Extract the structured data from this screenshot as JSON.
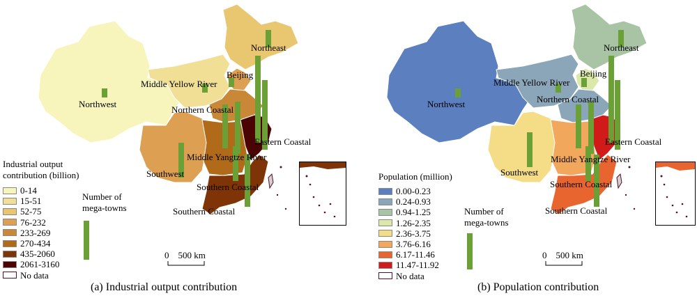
{
  "panels": [
    {
      "caption": "(a) Industrial output contribution",
      "legend_title": [
        "Industrial output",
        "contribution (billion)"
      ],
      "legend": [
        {
          "label": "0-14",
          "color": "#f7f4bc"
        },
        {
          "label": "15-51",
          "color": "#f0df94"
        },
        {
          "label": "52-75",
          "color": "#e9c670"
        },
        {
          "label": "76-232",
          "color": "#dda052"
        },
        {
          "label": "233-269",
          "color": "#c98838"
        },
        {
          "label": "270-434",
          "color": "#b06a1a"
        },
        {
          "label": "435-2060",
          "color": "#7e3407"
        },
        {
          "label": "2061-3160",
          "color": "#4a0404"
        },
        {
          "label": "No data",
          "color": "#ffffff"
        }
      ],
      "mega_title": [
        "Number of",
        "mega-towns"
      ],
      "scale": "0    500 km",
      "regions": {
        "northwest": "#f7f4bc",
        "middle_yellow_river": "#f0df94",
        "northeast": "#e9c670",
        "beijing": "#dda052",
        "northern_coastal": "#c98838",
        "southwest": "#dda052",
        "middle_yangtze": "#b06a1a",
        "eastern_coastal": "#4a0404",
        "southern_coastal": "#7e3407"
      }
    },
    {
      "caption": "(b) Population contribution",
      "legend_title": [
        "Population (million)"
      ],
      "legend": [
        {
          "label": "0.00-0.23",
          "color": "#5b7fbf"
        },
        {
          "label": "0.24-0.93",
          "color": "#8aa6b8"
        },
        {
          "label": "0.94-1.25",
          "color": "#a9c3a5"
        },
        {
          "label": "1.26-2.35",
          "color": "#dbe8a9"
        },
        {
          "label": "2.36-3.75",
          "color": "#f4dd86"
        },
        {
          "label": "3.76-6.16",
          "color": "#f2a85c"
        },
        {
          "label": "6.17-11.46",
          "color": "#e96530"
        },
        {
          "label": "11.47-11.92",
          "color": "#d11a1a"
        },
        {
          "label": "No data",
          "color": "#ffffff"
        }
      ],
      "mega_title": [
        "Number of",
        "mega-towns"
      ],
      "scale": "0    500 km",
      "regions": {
        "northwest": "#5b7fbf",
        "middle_yellow_river": "#8aa6b8",
        "northeast": "#a9c3a5",
        "beijing": "#dbe8a9",
        "northern_coastal": "#8aa6b8",
        "southwest": "#f4dd86",
        "middle_yangtze": "#f2a85c",
        "eastern_coastal": "#d11a1a",
        "southern_coastal": "#e96530"
      }
    }
  ],
  "region_labels": {
    "northeast": "Northeast",
    "beijing": "Beijing",
    "middle_yellow_river": "Middle Yellow River",
    "northwest": "Northwest",
    "northern_coastal": "Northern Coastal",
    "eastern_coastal": "Eastern Coastal",
    "middle_yangtze": "Middle Yangtze River",
    "southwest": "Southwest",
    "southern_coastal_1": "Southern Coastal",
    "southern_coastal_2": "Southern Coastal"
  },
  "mega_towns": {
    "northwest": 1,
    "northeast": 2,
    "middle_yellow_river": 1,
    "beijing": 1,
    "northern_coastal_a": 5,
    "northern_coastal_b": 6,
    "eastern_coastal_a": 10,
    "eastern_coastal_b": 8,
    "middle_yangtze": 4,
    "southwest": 4,
    "southern_coastal": 6
  }
}
